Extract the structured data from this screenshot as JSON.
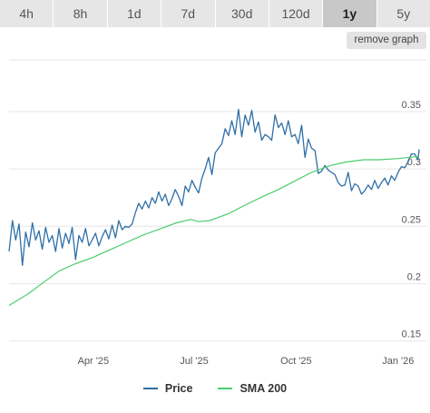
{
  "tabs": [
    {
      "label": "4h"
    },
    {
      "label": "8h"
    },
    {
      "label": "1d"
    },
    {
      "label": "7d"
    },
    {
      "label": "30d"
    },
    {
      "label": "120d"
    },
    {
      "label": "1y",
      "active": true
    },
    {
      "label": "5y"
    }
  ],
  "remove_graph_label": "remove graph",
  "colors": {
    "price": "#2f6fa8",
    "sma": "#4ccc6e",
    "grid": "#e6e6e6",
    "active_tab": "#c8c8c8"
  },
  "chart_data": {
    "type": "line",
    "title": "",
    "xlabel": "",
    "ylabel": "",
    "x_ticks": [
      "Apr '25",
      "Jul '25",
      "Oct '25",
      "Jan '26"
    ],
    "x_range": [
      "2025-01-15",
      "2026-01-20"
    ],
    "y_ticks": [
      0.15,
      0.2,
      0.25,
      0.3,
      0.35
    ],
    "y_tick_labels": [
      "0.15",
      "0.2",
      "0.25",
      "0.3",
      "0.35"
    ],
    "ylim": [
      0.145,
      0.395
    ],
    "grid": true,
    "legend_position": "bottom",
    "series": [
      {
        "name": "Price",
        "x": [
          "2025-01-15",
          "2025-01-18",
          "2025-01-21",
          "2025-01-24",
          "2025-01-27",
          "2025-01-30",
          "2025-02-02",
          "2025-02-05",
          "2025-02-08",
          "2025-02-11",
          "2025-02-14",
          "2025-02-17",
          "2025-02-20",
          "2025-02-23",
          "2025-02-26",
          "2025-03-01",
          "2025-03-04",
          "2025-03-07",
          "2025-03-10",
          "2025-03-13",
          "2025-03-16",
          "2025-03-19",
          "2025-03-22",
          "2025-03-25",
          "2025-03-28",
          "2025-03-31",
          "2025-04-03",
          "2025-04-06",
          "2025-04-09",
          "2025-04-12",
          "2025-04-15",
          "2025-04-18",
          "2025-04-21",
          "2025-04-24",
          "2025-04-27",
          "2025-04-30",
          "2025-05-03",
          "2025-05-06",
          "2025-05-09",
          "2025-05-12",
          "2025-05-15",
          "2025-05-18",
          "2025-05-21",
          "2025-05-24",
          "2025-05-27",
          "2025-05-30",
          "2025-06-02",
          "2025-06-05",
          "2025-06-08",
          "2025-06-11",
          "2025-06-14",
          "2025-06-17",
          "2025-06-20",
          "2025-06-23",
          "2025-06-26",
          "2025-06-29",
          "2025-07-02",
          "2025-07-05",
          "2025-07-08",
          "2025-07-11",
          "2025-07-14",
          "2025-07-17",
          "2025-07-20",
          "2025-07-23",
          "2025-07-26",
          "2025-07-29",
          "2025-08-01",
          "2025-08-04",
          "2025-08-07",
          "2025-08-10",
          "2025-08-13",
          "2025-08-16",
          "2025-08-19",
          "2025-08-22",
          "2025-08-25",
          "2025-08-28",
          "2025-08-31",
          "2025-09-03",
          "2025-09-06",
          "2025-09-09",
          "2025-09-12",
          "2025-09-15",
          "2025-09-18",
          "2025-09-21",
          "2025-09-24",
          "2025-09-27",
          "2025-09-30",
          "2025-10-03",
          "2025-10-06",
          "2025-10-09",
          "2025-10-12",
          "2025-10-15",
          "2025-10-18",
          "2025-10-21",
          "2025-10-24",
          "2025-10-27",
          "2025-10-30",
          "2025-11-02",
          "2025-11-05",
          "2025-11-08",
          "2025-11-11",
          "2025-11-14",
          "2025-11-17",
          "2025-11-20",
          "2025-11-23",
          "2025-11-26",
          "2025-11-29",
          "2025-12-02",
          "2025-12-05",
          "2025-12-08",
          "2025-12-11",
          "2025-12-14",
          "2025-12-17",
          "2025-12-20",
          "2025-12-23",
          "2025-12-26",
          "2025-12-29",
          "2026-01-01",
          "2026-01-04",
          "2026-01-07",
          "2026-01-10",
          "2026-01-13",
          "2026-01-16",
          "2026-01-19",
          "2026-01-20"
        ],
        "values": [
          0.228,
          0.255,
          0.238,
          0.252,
          0.216,
          0.245,
          0.232,
          0.253,
          0.238,
          0.246,
          0.23,
          0.249,
          0.236,
          0.242,
          0.228,
          0.248,
          0.231,
          0.244,
          0.235,
          0.249,
          0.221,
          0.242,
          0.236,
          0.248,
          0.233,
          0.238,
          0.244,
          0.233,
          0.241,
          0.247,
          0.239,
          0.251,
          0.24,
          0.255,
          0.247,
          0.25,
          0.249,
          0.252,
          0.262,
          0.27,
          0.265,
          0.272,
          0.266,
          0.275,
          0.27,
          0.28,
          0.272,
          0.278,
          0.268,
          0.274,
          0.282,
          0.276,
          0.268,
          0.285,
          0.28,
          0.29,
          0.284,
          0.279,
          0.292,
          0.3,
          0.31,
          0.295,
          0.314,
          0.318,
          0.322,
          0.335,
          0.329,
          0.342,
          0.33,
          0.352,
          0.328,
          0.347,
          0.338,
          0.351,
          0.332,
          0.341,
          0.325,
          0.33,
          0.328,
          0.325,
          0.347,
          0.336,
          0.34,
          0.33,
          0.342,
          0.328,
          0.33,
          0.322,
          0.338,
          0.31,
          0.326,
          0.318,
          0.316,
          0.296,
          0.298,
          0.303,
          0.299,
          0.297,
          0.295,
          0.288,
          0.285,
          0.286,
          0.297,
          0.281,
          0.287,
          0.285,
          0.278,
          0.281,
          0.286,
          0.282,
          0.29,
          0.283,
          0.288,
          0.292,
          0.286,
          0.294,
          0.29,
          0.297,
          0.302,
          0.301,
          0.306,
          0.313,
          0.313,
          0.308,
          0.317
        ]
      },
      {
        "name": "SMA 200",
        "x": [
          "2025-01-15",
          "2025-02-01",
          "2025-02-15",
          "2025-03-01",
          "2025-03-15",
          "2025-04-01",
          "2025-04-15",
          "2025-05-01",
          "2025-05-15",
          "2025-06-01",
          "2025-06-15",
          "2025-06-28",
          "2025-07-05",
          "2025-07-15",
          "2025-08-01",
          "2025-08-15",
          "2025-09-01",
          "2025-09-15",
          "2025-10-01",
          "2025-10-15",
          "2025-11-01",
          "2025-11-15",
          "2025-12-01",
          "2025-12-15",
          "2026-01-01",
          "2026-01-20"
        ],
        "values": [
          0.181,
          0.191,
          0.201,
          0.211,
          0.217,
          0.223,
          0.229,
          0.236,
          0.242,
          0.248,
          0.253,
          0.256,
          0.254,
          0.255,
          0.261,
          0.268,
          0.276,
          0.282,
          0.29,
          0.297,
          0.303,
          0.306,
          0.308,
          0.308,
          0.309,
          0.311
        ]
      }
    ]
  }
}
